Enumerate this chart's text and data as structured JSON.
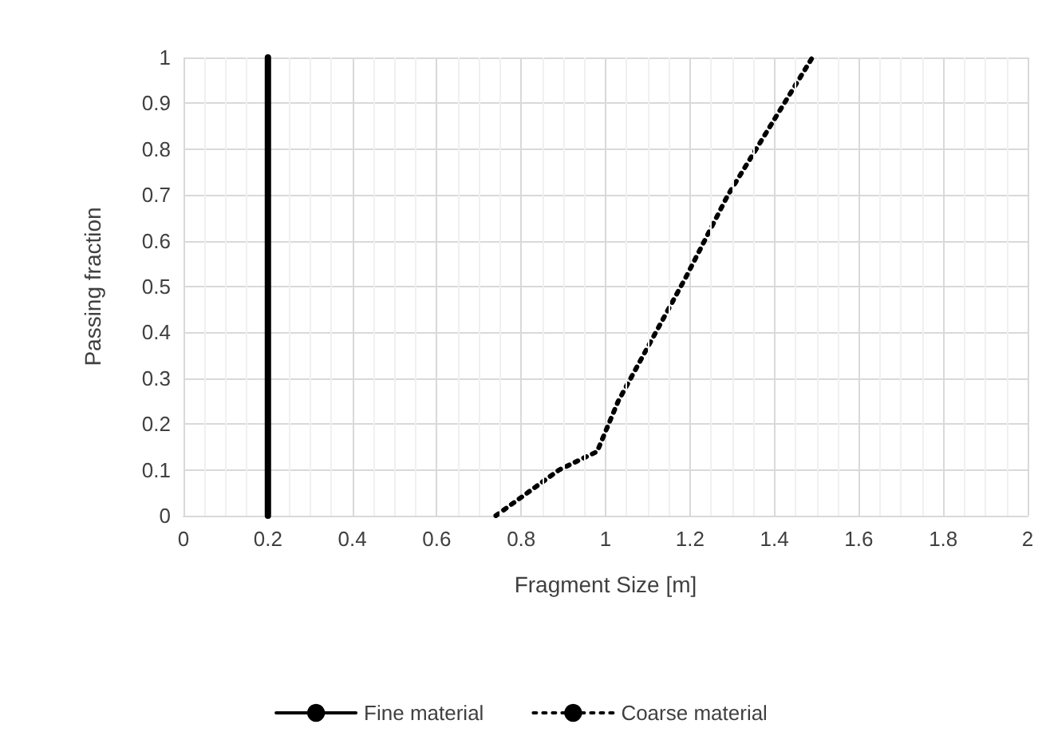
{
  "chart_data": {
    "type": "line",
    "xlabel": "Fragment Size [m]",
    "ylabel": "Passing fraction",
    "xlim": [
      0,
      2
    ],
    "xticks": [
      0,
      0.2,
      0.4,
      0.6,
      0.8,
      1,
      1.2,
      1.4,
      1.6,
      1.8,
      2
    ],
    "ylim": [
      0,
      1
    ],
    "yticks": [
      0,
      0.1,
      0.2,
      0.3,
      0.4,
      0.5,
      0.6,
      0.7,
      0.8,
      0.9,
      1
    ],
    "grid": true,
    "legend": "bottom",
    "marker": "none",
    "series": [
      {
        "name": "Fine material",
        "color": "#000000",
        "line_style": "solid",
        "x": [
          0.2,
          0.2
        ],
        "values": [
          0,
          1
        ]
      },
      {
        "name": "Coarse material",
        "color": "#000000",
        "line_style": "dotted",
        "x": [
          0.74,
          0.89,
          0.98,
          1.03,
          1.19,
          1.29,
          1.49
        ],
        "values": [
          0,
          0.1,
          0.14,
          0.25,
          0.52,
          0.7,
          1
        ]
      }
    ]
  }
}
